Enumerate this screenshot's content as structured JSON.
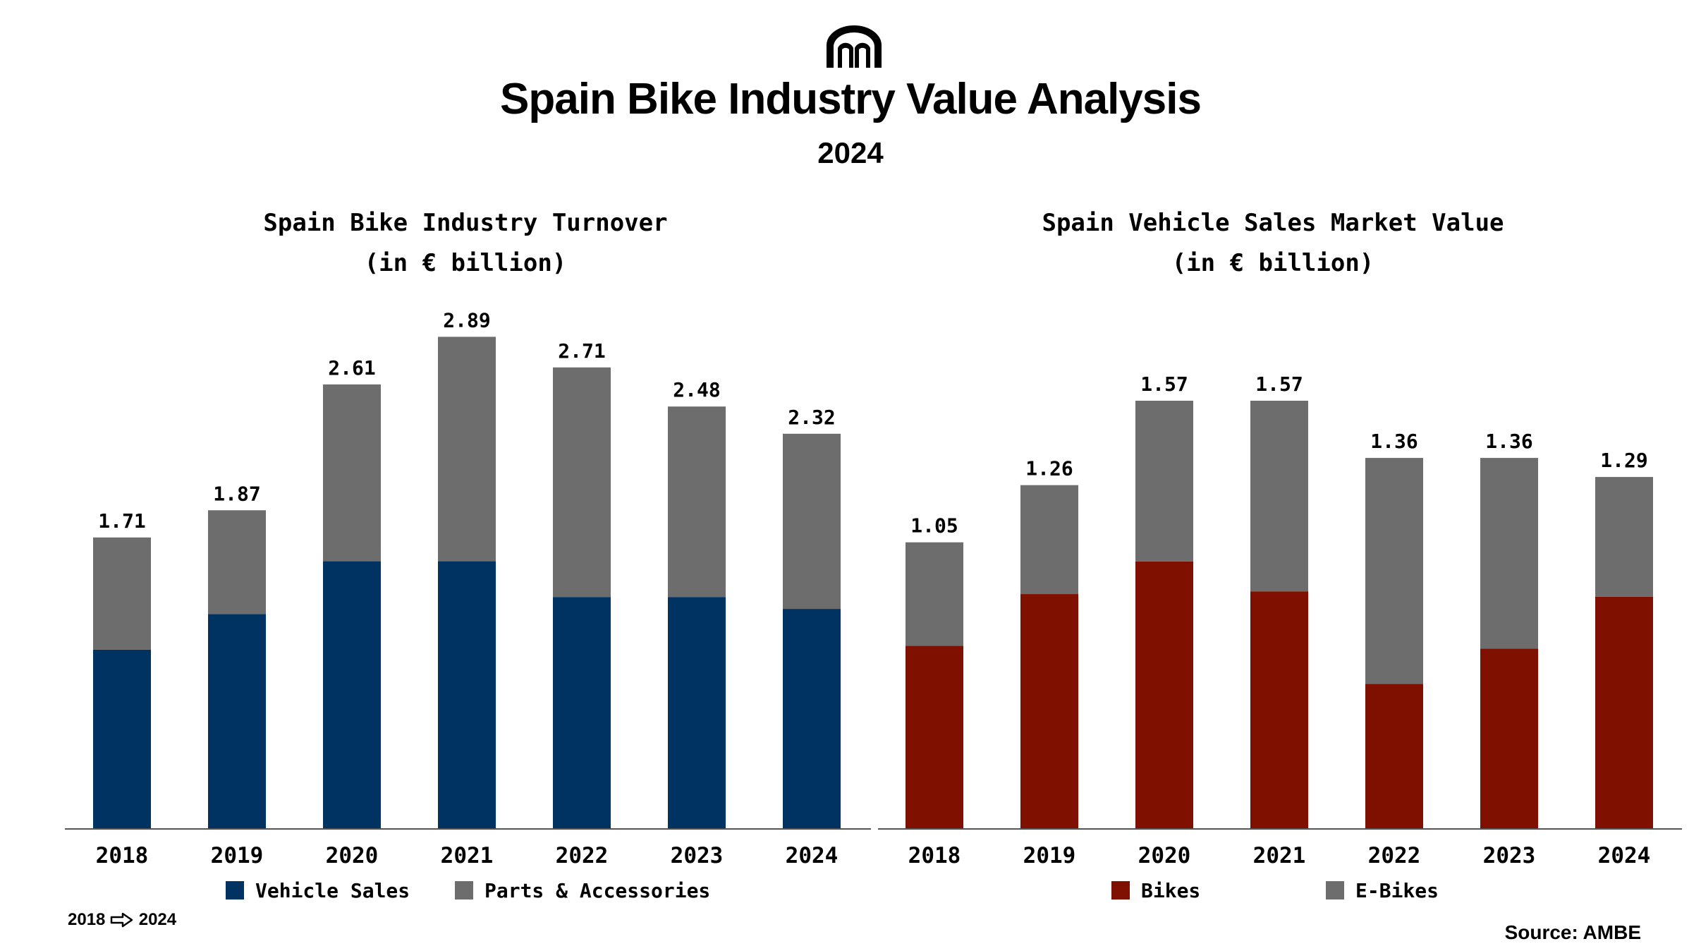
{
  "header": {
    "title": "Spain Bike Industry Value Analysis",
    "subtitle": "2024",
    "logo_icon": "arch-logo-icon"
  },
  "chart_data": [
    {
      "type": "bar",
      "stacked": true,
      "title": "Spain Bike Industry Turnover",
      "subtitle": "(in € billion)",
      "categories": [
        "2018",
        "2019",
        "2020",
        "2021",
        "2022",
        "2023",
        "2024"
      ],
      "series": [
        {
          "name": "Vehicle Sales",
          "color": "#003361",
          "values": [
            1.05,
            1.26,
            1.57,
            1.57,
            1.36,
            1.36,
            1.29
          ]
        },
        {
          "name": "Parts & Accessories",
          "color": "#6d6d6d",
          "values": [
            0.66,
            0.61,
            1.04,
            1.32,
            1.35,
            1.12,
            1.03
          ]
        }
      ],
      "totals": [
        "1.71",
        "1.87",
        "2.61",
        "2.89",
        "2.71",
        "2.48",
        "2.32"
      ],
      "ylim": [
        0,
        2.9
      ],
      "legend_position": "bottom"
    },
    {
      "type": "bar",
      "stacked": true,
      "title": "Spain Vehicle Sales Market Value",
      "subtitle": "(in € billion)",
      "categories": [
        "2018",
        "2019",
        "2020",
        "2021",
        "2022",
        "2023",
        "2024"
      ],
      "series": [
        {
          "name": "Bikes",
          "color": "#7f1000",
          "values": [
            0.67,
            0.86,
            0.98,
            0.87,
            0.53,
            0.66,
            0.85
          ]
        },
        {
          "name": "E-Bikes",
          "color": "#6d6d6d",
          "values": [
            0.38,
            0.4,
            0.59,
            0.7,
            0.83,
            0.7,
            0.44
          ]
        }
      ],
      "totals": [
        "1.05",
        "1.26",
        "1.57",
        "1.57",
        "1.36",
        "1.36",
        "1.29"
      ],
      "ylim": [
        0,
        1.57
      ],
      "legend_position": "bottom"
    }
  ],
  "footer": {
    "period_start": "2018",
    "period_end": "2024",
    "arrow_icon": "right-arrow-icon",
    "source": "Source: AMBE"
  }
}
